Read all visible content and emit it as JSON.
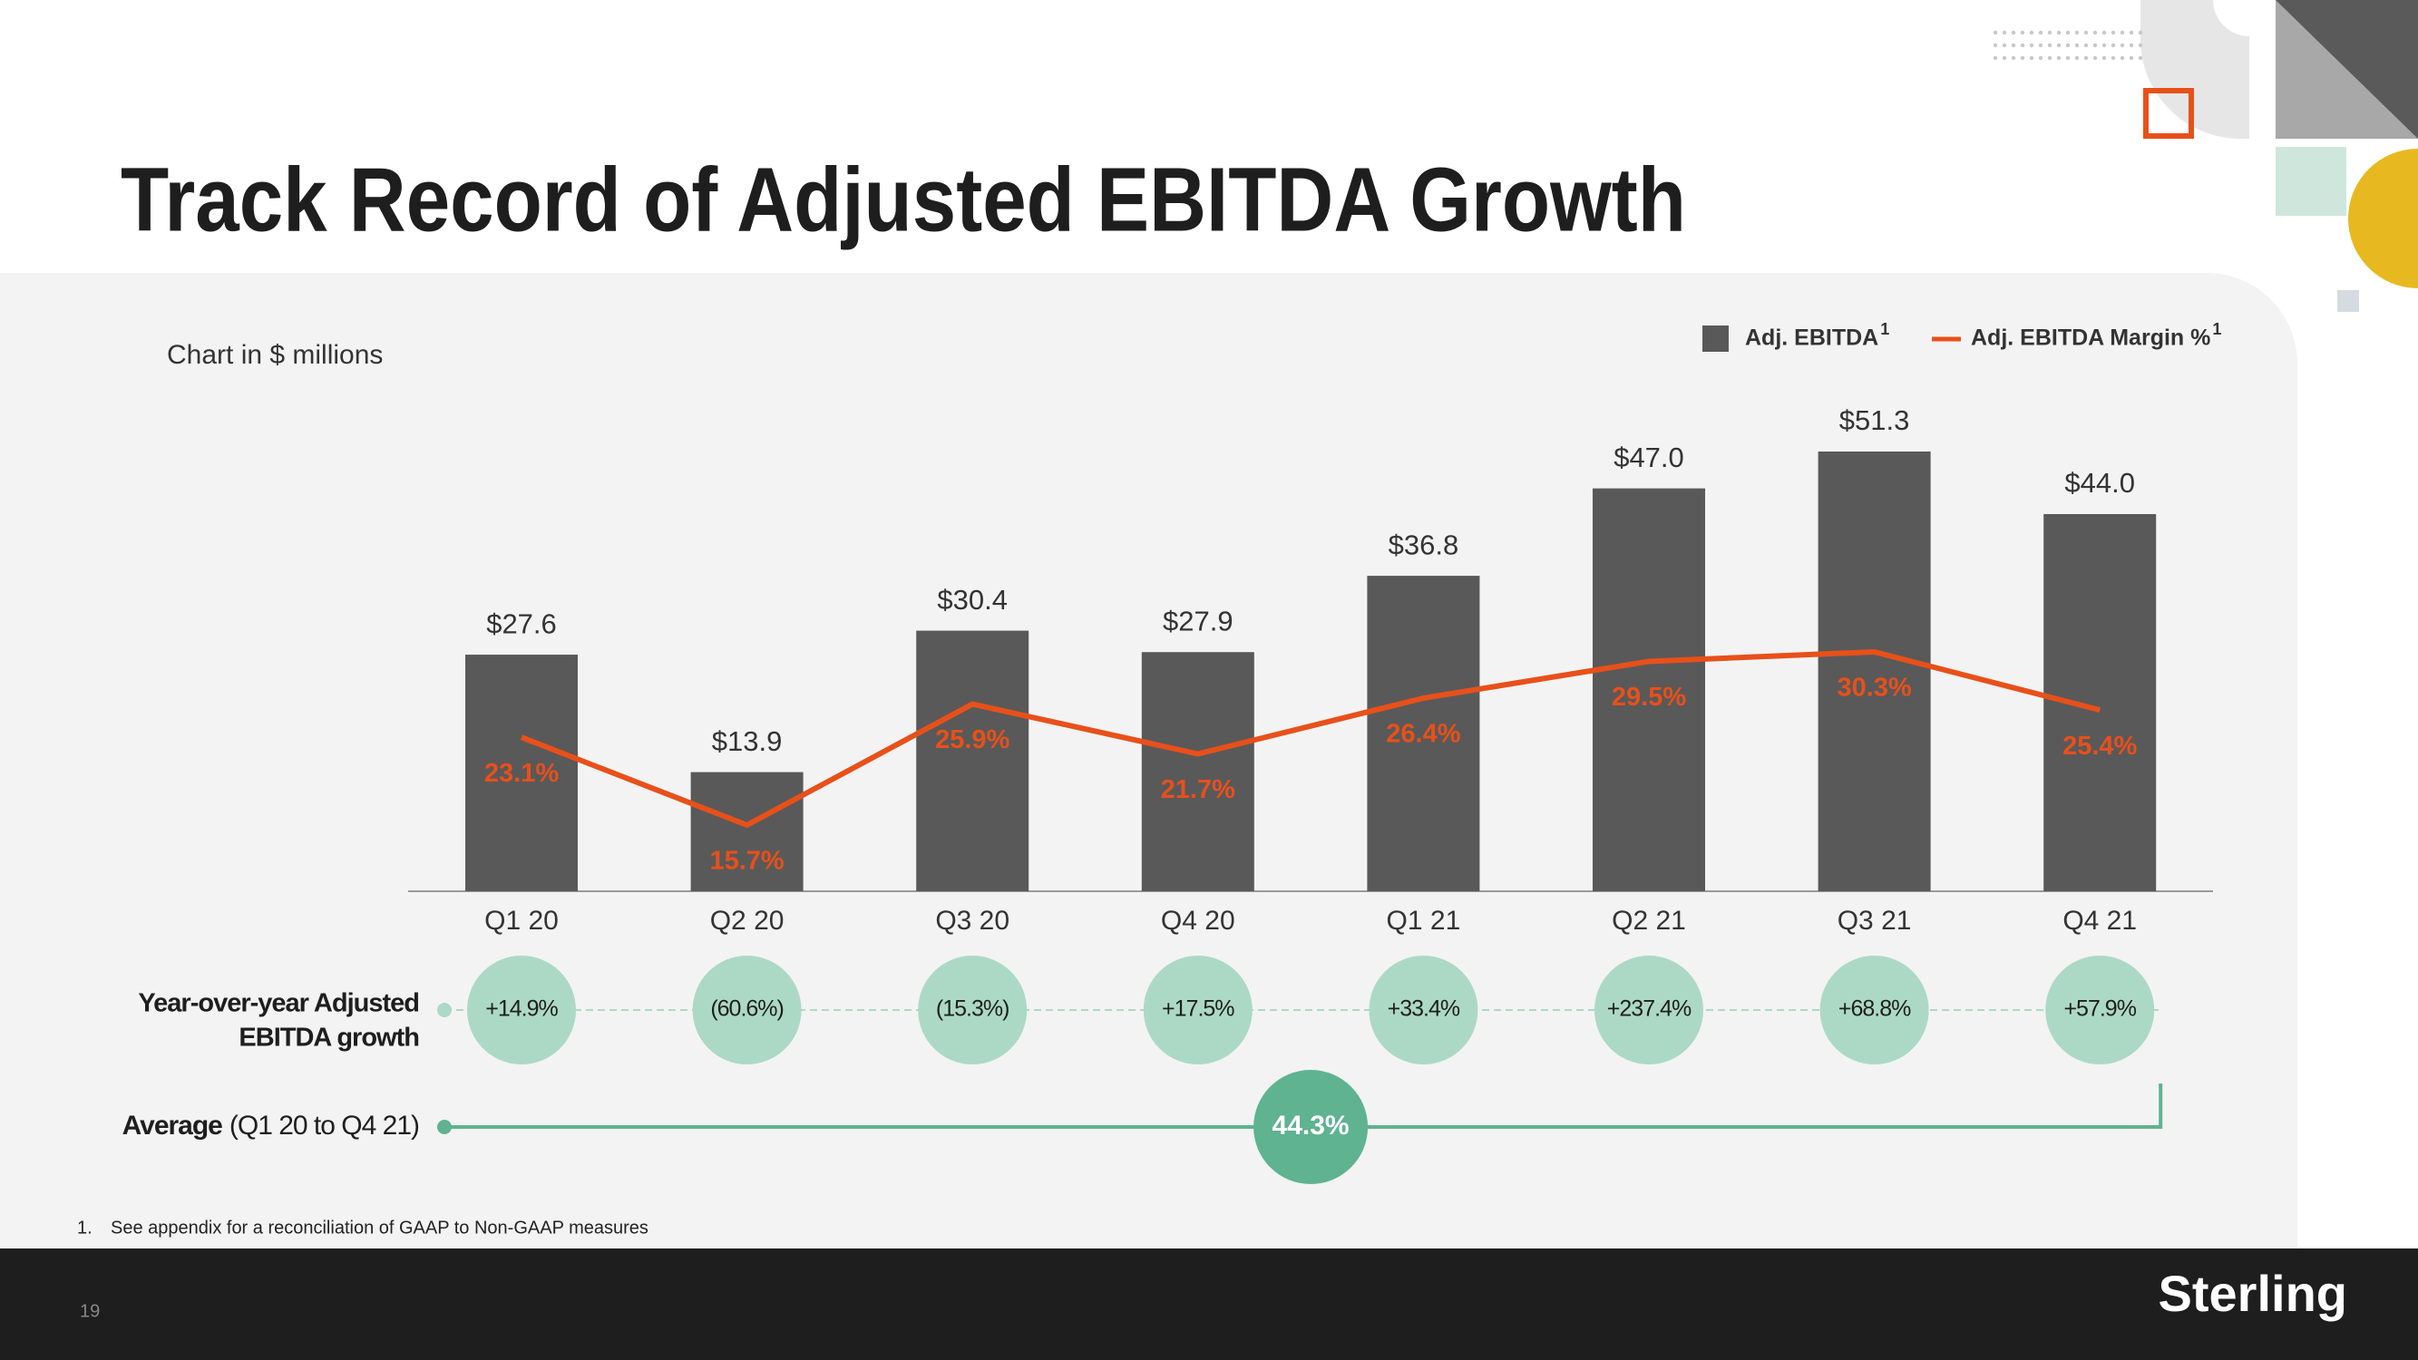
{
  "header": {
    "title": "Track Record of Adjusted EBITDA Growth",
    "subtitle": "Chart in $ millions"
  },
  "chart_data": {
    "type": "bar",
    "categories": [
      "Q1 20",
      "Q2 20",
      "Q3 20",
      "Q4 20",
      "Q1 21",
      "Q2 21",
      "Q3 21",
      "Q4 21"
    ],
    "series": [
      {
        "name": "Adj. EBITDA",
        "color": "#595959",
        "values": [
          27.6,
          13.9,
          30.4,
          27.9,
          36.8,
          47.0,
          51.3,
          44.0
        ],
        "value_labels": [
          "$27.6",
          "$13.9",
          "$30.4",
          "$27.9",
          "$36.8",
          "$47.0",
          "$51.3",
          "$44.0"
        ]
      },
      {
        "name": "Adj. EBITDA Margin %",
        "type": "line",
        "color": "#e8501a",
        "values": [
          23.1,
          15.7,
          25.9,
          21.7,
          26.4,
          29.5,
          30.3,
          25.4
        ],
        "value_labels": [
          "23.1%",
          "15.7%",
          "25.9%",
          "21.7%",
          "26.4%",
          "29.5%",
          "30.3%",
          "25.4%"
        ]
      }
    ],
    "legend_marker": "1"
  },
  "growth": {
    "label": [
      "Year-over-year Adjusted",
      "EBITDA growth"
    ],
    "color": "#acd9c5",
    "values": [
      14.9,
      -60.6,
      -15.3,
      17.5,
      33.4,
      237.4,
      68.8,
      57.9
    ],
    "value_labels": [
      "+14.9%",
      "(60.6%)",
      "(15.3%)",
      "+17.5%",
      "+33.4%",
      "+237.4%",
      "+68.8%",
      "+57.9%"
    ]
  },
  "average": {
    "label": "Average",
    "range": "(Q1 20 to Q4 21)",
    "value": 44.3,
    "value_label": "44.3%",
    "color": "#5fb390"
  },
  "footnote": {
    "number": "1.",
    "text": "See appendix for a reconciliation of GAAP to Non-GAAP measures"
  },
  "footer": {
    "page": "19",
    "logo": "Sterling"
  }
}
